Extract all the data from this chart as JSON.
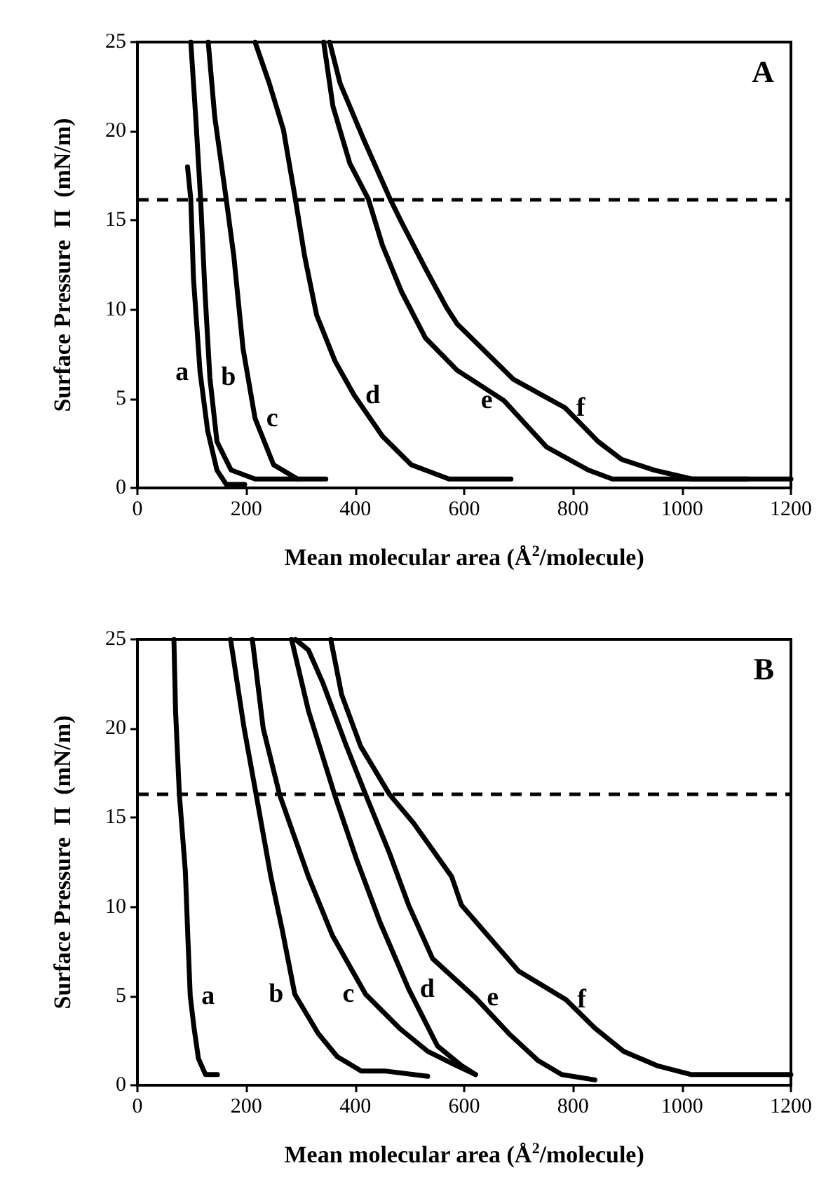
{
  "chart_data": [
    {
      "type": "line",
      "xlabel": "Mean molecular area (Å$^{2}$/molecule)",
      "ylabel": "Surface Pressure  Π  (mN/m)",
      "annotations": [
        "A"
      ],
      "xlim": [
        0,
        1200
      ],
      "xticks": [
        0,
        200,
        400,
        600,
        800,
        1000,
        1200
      ],
      "ylim": [
        0,
        25
      ],
      "yticks": [
        0,
        5,
        10,
        15,
        20,
        25
      ],
      "grid": false,
      "legend": false,
      "marker": "none",
      "line_style": "solid",
      "ref_lines": [
        {
          "axis": "y",
          "value": 16.2,
          "color": "#000000",
          "line_style": "dashed"
        }
      ],
      "series": [
        {
          "name": "a",
          "color": "#000000",
          "x": [
            92,
            98,
            103,
            115,
            129,
            146,
            163,
            197
          ],
          "values": [
            18,
            16.2,
            11.7,
            6.5,
            3.2,
            1,
            0.2,
            0.2
          ]
        },
        {
          "name": "b",
          "color": "#000000",
          "x": [
            98,
            107,
            116,
            124,
            133,
            146,
            172,
            216,
            294
          ],
          "values": [
            25,
            20.8,
            16.2,
            11,
            6.2,
            2.6,
            1,
            0.5,
            0.5
          ]
        },
        {
          "name": "c",
          "color": "#000000",
          "x": [
            130,
            142,
            163,
            177,
            194,
            216,
            250,
            294,
            346
          ],
          "values": [
            25,
            20.8,
            16.2,
            13,
            7.8,
            3.9,
            1.3,
            0.5,
            0.5
          ]
        },
        {
          "name": "d",
          "color": "#000000",
          "x": [
            216,
            242,
            268,
            290,
            307,
            329,
            363,
            398,
            450,
            503,
            572,
            686
          ],
          "values": [
            25,
            22.7,
            20.1,
            16.2,
            13,
            9.7,
            7.1,
            5.2,
            2.9,
            1.3,
            0.5,
            0.5
          ]
        },
        {
          "name": "e",
          "color": "#000000",
          "x": [
            342,
            359,
            390,
            424,
            450,
            485,
            529,
            587,
            673,
            751,
            828,
            872,
            1120
          ],
          "values": [
            25,
            21.4,
            18.2,
            16.2,
            13.6,
            11,
            8.4,
            6.6,
            4.9,
            2.3,
            1,
            0.5,
            0.5
          ]
        },
        {
          "name": "f",
          "color": "#000000",
          "x": [
            353,
            372,
            416,
            464,
            485,
            529,
            568,
            587,
            690,
            785,
            846,
            889,
            949,
            1018,
            1200
          ],
          "values": [
            25,
            22.7,
            19.5,
            16.2,
            14.9,
            12.3,
            10.1,
            9.2,
            6.1,
            4.5,
            2.6,
            1.6,
            1,
            0.5,
            0.5
          ]
        }
      ]
    },
    {
      "type": "line",
      "xlabel": "Mean molecular area (Å$^{2}$/molecule)",
      "ylabel": "Surface Pressure  Π  (mN/m)",
      "annotations": [
        "B"
      ],
      "xlim": [
        0,
        1200
      ],
      "xticks": [
        0,
        200,
        400,
        600,
        800,
        1000,
        1200
      ],
      "ylim": [
        0,
        25
      ],
      "yticks": [
        0,
        5,
        10,
        15,
        20,
        25
      ],
      "grid": false,
      "legend": false,
      "marker": "none",
      "line_style": "solid",
      "ref_lines": [
        {
          "axis": "y",
          "value": 16.3,
          "color": "#000000",
          "line_style": "dashed"
        }
      ],
      "series": [
        {
          "name": "a",
          "color": "#000000",
          "x": [
            67,
            70,
            77,
            88,
            93,
            97,
            104,
            112,
            125,
            147
          ],
          "values": [
            25,
            21,
            16.3,
            12,
            8,
            5,
            3.2,
            1.5,
            0.6,
            0.6
          ]
        },
        {
          "name": "b",
          "color": "#000000",
          "x": [
            171,
            196,
            218,
            245,
            266,
            289,
            332,
            367,
            411,
            454,
            533
          ],
          "values": [
            25,
            20,
            16.3,
            11.7,
            8.7,
            5.1,
            2.9,
            1.6,
            0.8,
            0.8,
            0.5
          ]
        },
        {
          "name": "c",
          "color": "#000000",
          "x": [
            211,
            231,
            261,
            314,
            358,
            419,
            481,
            533,
            586,
            621
          ],
          "values": [
            25,
            20,
            16.3,
            11.7,
            8.4,
            5.1,
            3.2,
            1.9,
            1.1,
            0.6
          ]
        },
        {
          "name": "d",
          "color": "#000000",
          "x": [
            283,
            314,
            362,
            402,
            446,
            498,
            551,
            595,
            621
          ],
          "values": [
            25,
            21,
            16.3,
            12.7,
            9.1,
            5.4,
            2.2,
            1.1,
            0.6
          ]
        },
        {
          "name": "e",
          "color": "#000000",
          "x": [
            290,
            314,
            340,
            384,
            419,
            463,
            498,
            542,
            621,
            682,
            735,
            779,
            840
          ],
          "values": [
            25,
            24.4,
            22.6,
            19,
            16.3,
            13,
            10.1,
            7.1,
            4.9,
            2.9,
            1.4,
            0.6,
            0.3
          ]
        },
        {
          "name": "f",
          "color": "#000000",
          "x": [
            355,
            375,
            410,
            463,
            507,
            577,
            595,
            700,
            787,
            840,
            893,
            954,
            1016,
            1200
          ],
          "values": [
            25,
            21.9,
            19,
            16.3,
            14.7,
            11.7,
            10.1,
            6.4,
            4.8,
            3.2,
            1.9,
            1.1,
            0.6,
            0.6
          ]
        }
      ]
    }
  ]
}
